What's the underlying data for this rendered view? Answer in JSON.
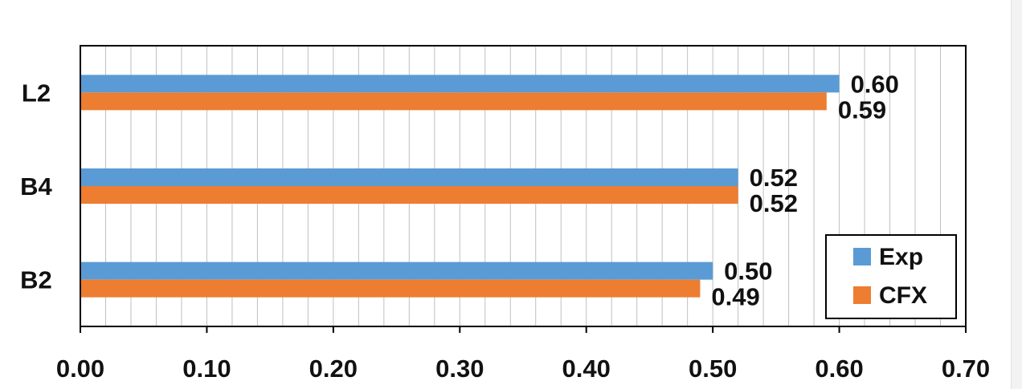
{
  "chart_data": {
    "type": "bar",
    "orientation": "horizontal",
    "categories": [
      "L2",
      "B4",
      "B2"
    ],
    "series": [
      {
        "name": "Exp",
        "values": [
          0.6,
          0.52,
          0.5
        ],
        "labels": [
          "0.60",
          "0.52",
          "0.50"
        ],
        "color": "#5b9bd5"
      },
      {
        "name": "CFX",
        "values": [
          0.59,
          0.52,
          0.49
        ],
        "labels": [
          "0.59",
          "0.52",
          "0.49"
        ],
        "color": "#ed7d31"
      }
    ],
    "x_ticks": [
      "0.00",
      "0.10",
      "0.20",
      "0.30",
      "0.40",
      "0.50",
      "0.60",
      "0.70"
    ],
    "xlim": [
      0,
      0.7
    ],
    "xlabel": "",
    "ylabel": "",
    "title": "",
    "grid": true,
    "legend_position": "bottom-right"
  }
}
